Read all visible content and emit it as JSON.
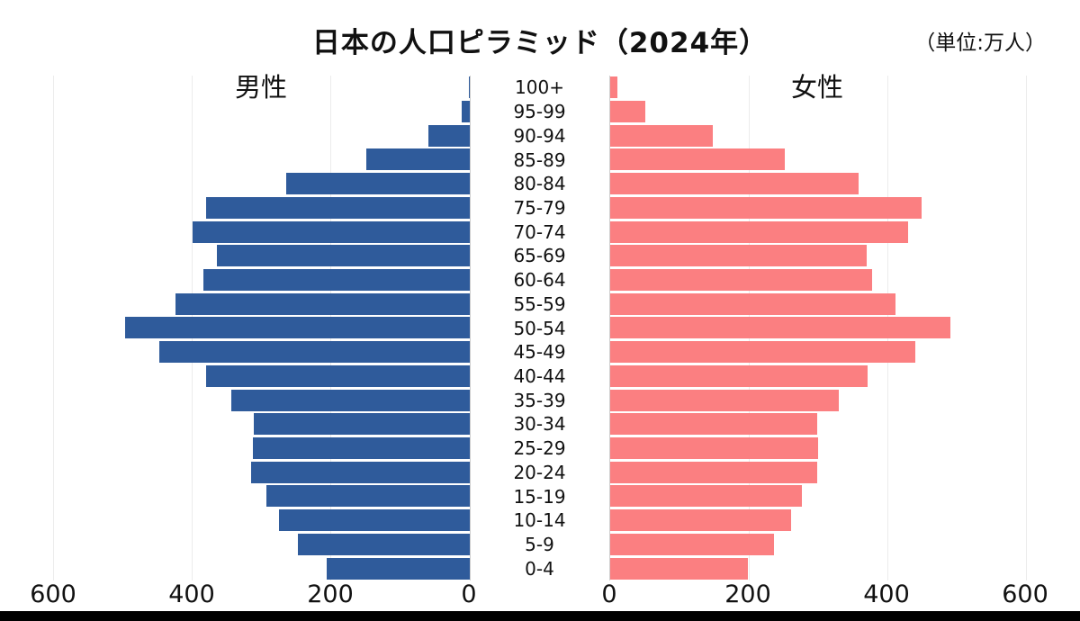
{
  "chart_data": {
    "type": "bar",
    "variant": "population-pyramid",
    "title": "日本の人口ピラミッド（2024年）",
    "unit_label": "（単位:万人）",
    "categories_top_to_bottom": [
      "100+",
      "95-99",
      "90-94",
      "85-89",
      "80-84",
      "75-79",
      "70-74",
      "65-69",
      "60-64",
      "55-59",
      "50-54",
      "45-49",
      "40-44",
      "35-39",
      "30-34",
      "25-29",
      "20-24",
      "15-19",
      "10-14",
      "5-9",
      "0-4"
    ],
    "series": [
      {
        "name": "男性",
        "side": "left",
        "color": "#2F5B9B",
        "values": [
          2,
          12,
          60,
          150,
          265,
          380,
          400,
          365,
          385,
          425,
          498,
          448,
          380,
          344,
          312,
          313,
          315,
          293,
          276,
          248,
          207
        ]
      },
      {
        "name": "女性",
        "side": "right",
        "color": "#FB7F81",
        "values": [
          10,
          50,
          148,
          252,
          359,
          449,
          430,
          370,
          378,
          412,
          491,
          440,
          371,
          330,
          299,
          300,
          298,
          276,
          261,
          236,
          198
        ]
      }
    ],
    "x_axis": {
      "left_ticks": [
        600,
        400,
        200,
        0
      ],
      "right_ticks": [
        0,
        200,
        400,
        600
      ],
      "max": 600
    },
    "grid": true,
    "background": "#FFFFFF",
    "gridline_color": "#ECECEC",
    "axis_line_color": "#CFCFCF",
    "bottom_bar_color": "#000000"
  }
}
